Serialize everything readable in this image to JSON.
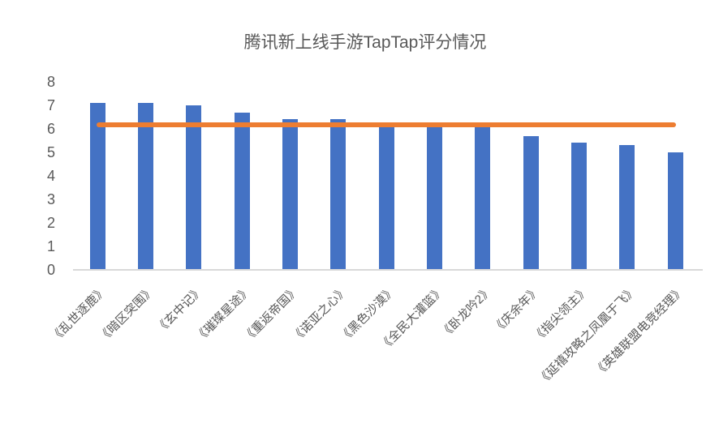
{
  "chart_data": {
    "type": "bar",
    "title": "腾讯新上线手游TapTap评分情况",
    "categories": [
      "《乱世逐鹿》",
      "《暗区突围》",
      "《玄中记》",
      "《璀璨星途》",
      "《重返帝国》",
      "《诺亚之心》",
      "《黑色沙漠》",
      "《全民大灌篮》",
      "《卧龙吟2》",
      "《庆余年》",
      "《指尖领主》",
      "《延禧攻略之凤凰于飞》",
      "《英雄联盟电竞经理》"
    ],
    "values": [
      7.1,
      7.1,
      7.0,
      6.7,
      6.4,
      6.4,
      6.1,
      6.1,
      6.1,
      5.7,
      5.4,
      5.3,
      5.0
    ],
    "average_line_value": 6.18,
    "y_ticks": [
      0,
      1,
      2,
      3,
      4,
      5,
      6,
      7,
      8
    ],
    "ylim": [
      0,
      8
    ],
    "xlabel": "",
    "ylabel": "",
    "grid": false,
    "legend_position": "none",
    "x_label_rotation_deg": 45
  },
  "colors": {
    "bar": "#4472C4",
    "average_line": "#ED7D31",
    "text": "#595959",
    "axis_line": "#D9D9D9",
    "background": "#FFFFFF"
  }
}
